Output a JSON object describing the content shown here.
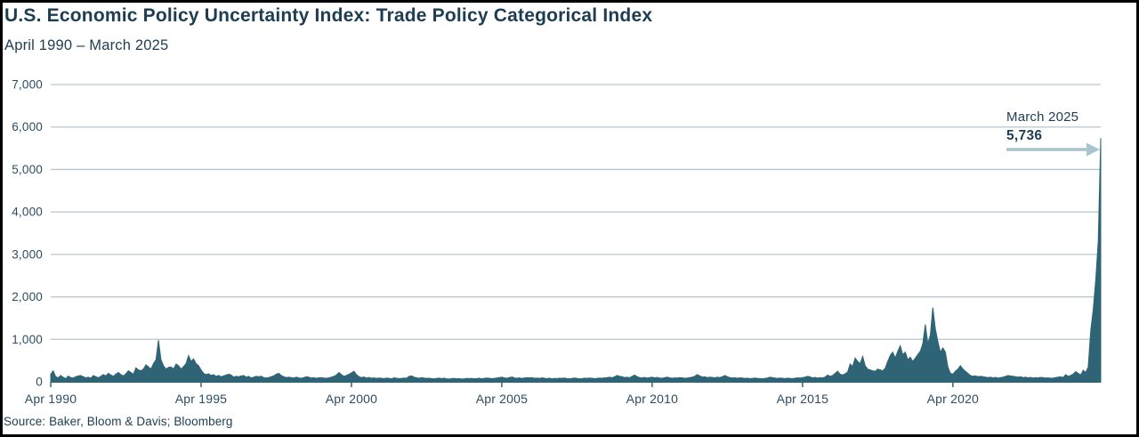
{
  "header": {
    "title": "U.S. Economic Policy Uncertainty Index: Trade Policy Categorical Index",
    "subtitle": "April 1990 – March 2025"
  },
  "source_note": "Source: Baker, Bloom & Davis; Bloomberg",
  "annotation": {
    "label": "March 2025",
    "value": "5,736",
    "arrow_icon": "right-arrow"
  },
  "colors": {
    "text": "#1d3d53",
    "axis_label": "#2b4d61",
    "area": "#2f6477",
    "grid": "#b8c6cd",
    "arrow": "#a8c4ce",
    "background": "#ffffff",
    "frame_border": "#000000"
  },
  "chart_data": {
    "type": "area",
    "title": "U.S. Economic Policy Uncertainty Index: Trade Policy Categorical Index",
    "subtitle": "April 1990 – March 2025",
    "x_unit": "month",
    "x_start": "1990-04",
    "x_end": "2025-03",
    "ylim": [
      0,
      7000
    ],
    "ytick_step": 1000,
    "yticks": [
      "0",
      "1,000",
      "2,000",
      "3,000",
      "4,000",
      "5,000",
      "6,000",
      "7,000"
    ],
    "xticks": [
      {
        "label": "Apr 1990",
        "month_index": 0
      },
      {
        "label": "Apr 1995",
        "month_index": 60
      },
      {
        "label": "Apr 2000",
        "month_index": 120
      },
      {
        "label": "Apr 2005",
        "month_index": 180
      },
      {
        "label": "Apr 2010",
        "month_index": 240
      },
      {
        "label": "Apr 2015",
        "month_index": 300
      },
      {
        "label": "Apr 2020",
        "month_index": 360
      }
    ],
    "grid": true,
    "legend": false,
    "last_point": {
      "label": "March 2025",
      "value": 5736
    },
    "series": [
      {
        "name": "Trade Policy Categorical Index",
        "values": [
          180,
          260,
          120,
          95,
          150,
          105,
          75,
          135,
          100,
          90,
          120,
          140,
          150,
          120,
          95,
          110,
          85,
          150,
          120,
          95,
          130,
          170,
          140,
          200,
          160,
          130,
          180,
          220,
          170,
          140,
          190,
          260,
          220,
          180,
          330,
          280,
          260,
          300,
          400,
          350,
          300,
          430,
          520,
          980,
          520,
          380,
          300,
          340,
          350,
          300,
          420,
          380,
          300,
          360,
          430,
          620,
          480,
          540,
          430,
          380,
          280,
          200,
          170,
          190,
          150,
          170,
          130,
          150,
          120,
          140,
          160,
          180,
          160,
          110,
          130,
          120,
          140,
          150,
          110,
          130,
          90,
          110,
          130,
          120,
          130,
          100,
          90,
          100,
          120,
          140,
          180,
          200,
          150,
          120,
          100,
          110,
          100,
          90,
          110,
          95,
          85,
          100,
          120,
          110,
          90,
          100,
          85,
          95,
          100,
          90,
          85,
          95,
          110,
          130,
          160,
          220,
          170,
          130,
          150,
          180,
          210,
          250,
          170,
          120,
          100,
          115,
          90,
          105,
          85,
          95,
          80,
          90,
          85,
          75,
          90,
          80,
          70,
          95,
          85,
          75,
          80,
          90,
          85,
          130,
          140,
          110,
          95,
          85,
          100,
          90,
          80,
          85,
          75,
          70,
          80,
          85,
          75,
          85,
          70,
          65,
          75,
          80,
          70,
          75,
          65,
          70,
          80,
          75,
          80,
          70,
          75,
          85,
          70,
          80,
          90,
          85,
          75,
          80,
          90,
          100,
          110,
          95,
          85,
          100,
          115,
          95,
          85,
          95,
          80,
          90,
          100,
          95,
          100,
          85,
          90,
          80,
          95,
          85,
          75,
          85,
          70,
          80,
          75,
          85,
          80,
          90,
          75,
          70,
          80,
          90,
          80,
          70,
          75,
          85,
          80,
          90,
          85,
          75,
          80,
          90,
          85,
          95,
          100,
          110,
          95,
          120,
          150,
          130,
          120,
          100,
          110,
          95,
          130,
          160,
          120,
          100,
          95,
          105,
          90,
          100,
          110,
          95,
          105,
          90,
          85,
          100,
          110,
          95,
          85,
          95,
          90,
          100,
          95,
          85,
          90,
          100,
          110,
          130,
          170,
          140,
          110,
          120,
          100,
          110,
          105,
          95,
          110,
          100,
          120,
          150,
          120,
          100,
          90,
          100,
          85,
          95,
          90,
          80,
          85,
          75,
          80,
          90,
          80,
          75,
          70,
          80,
          90,
          110,
          100,
          90,
          80,
          90,
          85,
          75,
          85,
          80,
          75,
          85,
          95,
          90,
          100,
          110,
          130,
          115,
          95,
          105,
          90,
          100,
          95,
          110,
          160,
          130,
          150,
          200,
          250,
          180,
          160,
          190,
          230,
          420,
          360,
          560,
          480,
          430,
          600,
          380,
          300,
          280,
          260,
          250,
          300,
          280,
          260,
          320,
          480,
          620,
          700,
          560,
          720,
          850,
          640,
          700,
          520,
          580,
          480,
          560,
          640,
          720,
          900,
          1350,
          900,
          1100,
          1750,
          1250,
          950,
          700,
          800,
          700,
          350,
          200,
          180,
          250,
          300,
          380,
          300,
          250,
          200,
          150,
          130,
          140,
          120,
          130,
          120,
          110,
          100,
          110,
          95,
          105,
          90,
          100,
          110,
          130,
          150,
          140,
          130,
          120,
          110,
          120,
          100,
          110,
          95,
          105,
          90,
          100,
          95,
          105,
          100,
          90,
          95,
          85,
          90,
          100,
          110,
          120,
          100,
          170,
          130,
          150,
          180,
          240,
          200,
          160,
          275,
          220,
          350,
          1200,
          1700,
          2400,
          3300,
          5736
        ]
      }
    ]
  }
}
